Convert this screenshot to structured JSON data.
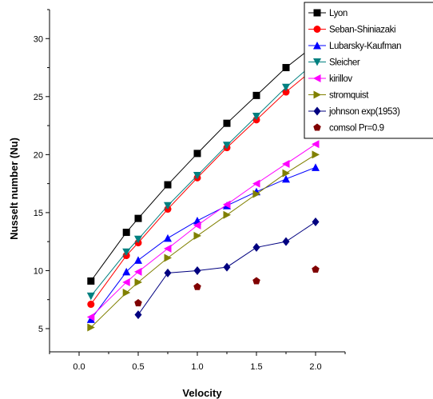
{
  "chart_data": {
    "type": "line",
    "title": "",
    "xlabel": "Velocity",
    "ylabel": "Nusselt number (Nu)",
    "xlim": [
      -0.25,
      2.25
    ],
    "ylim": [
      3.0,
      32.5
    ],
    "xticks": [
      0.0,
      0.5,
      1.0,
      1.5,
      2.0
    ],
    "xtick_labels": [
      "0.0",
      "0.5",
      "1.0",
      "1.5",
      "2.0"
    ],
    "yticks": [
      5,
      10,
      15,
      20,
      25,
      30
    ],
    "ytick_labels": [
      "5",
      "10",
      "15",
      "20",
      "25",
      "30"
    ],
    "grid": false,
    "legend_position": "top-right",
    "series": [
      {
        "name": "Lyon",
        "color": "#000000",
        "marker": "square",
        "line": true,
        "x": [
          0.1,
          0.4,
          0.5,
          0.75,
          1.0,
          1.25,
          1.5,
          1.75,
          2.0
        ],
        "y": [
          9.1,
          13.3,
          14.5,
          17.4,
          20.1,
          22.7,
          25.1,
          27.5,
          29.5
        ]
      },
      {
        "name": "Seban-Shiniazaki",
        "color": "#ff0000",
        "marker": "circle",
        "line": true,
        "x": [
          0.1,
          0.4,
          0.5,
          0.75,
          1.0,
          1.25,
          1.5,
          1.75,
          2.0
        ],
        "y": [
          7.1,
          11.3,
          12.4,
          15.3,
          18.0,
          20.6,
          23.0,
          25.4,
          27.5
        ]
      },
      {
        "name": "Lubarsky-Kaufman",
        "color": "#0000ff",
        "marker": "triangle-up",
        "line": true,
        "x": [
          0.1,
          0.4,
          0.5,
          0.75,
          1.0,
          1.25,
          1.5,
          1.75,
          2.0
        ],
        "y": [
          5.8,
          9.9,
          10.9,
          12.8,
          14.3,
          15.6,
          16.8,
          17.9,
          18.9
        ]
      },
      {
        "name": "Sleicher",
        "color": "#008080",
        "marker": "triangle-down",
        "line": true,
        "x": [
          0.1,
          0.4,
          0.5,
          0.75,
          1.0,
          1.25,
          1.5,
          1.75,
          2.0
        ],
        "y": [
          7.8,
          11.6,
          12.7,
          15.6,
          18.2,
          20.8,
          23.3,
          25.8,
          28.0
        ]
      },
      {
        "name": "kirillov",
        "color": "#ff00ff",
        "marker": "triangle-left",
        "line": true,
        "x": [
          0.1,
          0.4,
          0.5,
          0.75,
          1.0,
          1.25,
          1.5,
          1.75,
          2.0
        ],
        "y": [
          6.0,
          9.0,
          9.9,
          11.9,
          13.9,
          15.7,
          17.5,
          19.2,
          20.9
        ]
      },
      {
        "name": "stromquist",
        "color": "#808000",
        "marker": "triangle-right",
        "line": true,
        "x": [
          0.1,
          0.4,
          0.5,
          0.75,
          1.0,
          1.25,
          1.5,
          1.75,
          2.0
        ],
        "y": [
          5.1,
          8.1,
          9.0,
          11.1,
          13.0,
          14.8,
          16.6,
          18.4,
          20.0
        ]
      },
      {
        "name": "johnson exp(1953)",
        "color": "#000080",
        "marker": "diamond",
        "line": true,
        "x": [
          0.5,
          0.75,
          1.0,
          1.25,
          1.5,
          1.75,
          2.0
        ],
        "y": [
          6.2,
          9.8,
          10.0,
          10.3,
          12.0,
          12.5,
          14.2
        ]
      },
      {
        "name": "comsol Pr=0.9",
        "color": "#800000",
        "marker": "pentagon",
        "line": false,
        "x": [
          0.5,
          1.0,
          1.5,
          2.0
        ],
        "y": [
          7.2,
          8.6,
          9.1,
          10.1
        ]
      }
    ]
  }
}
